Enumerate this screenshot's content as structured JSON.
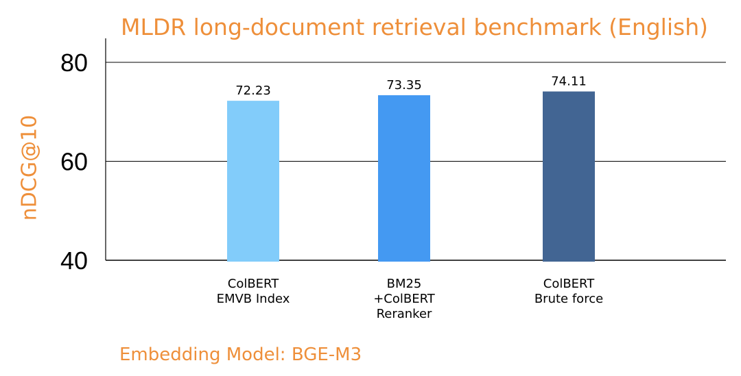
{
  "chart_data": {
    "type": "bar",
    "title": "MLDR long-document retrieval benchmark (English)",
    "ylabel": "nDCG@10",
    "xlabel": "",
    "ylim": [
      40,
      85
    ],
    "yticks": [
      "40",
      "60",
      "80"
    ],
    "grid": true,
    "categories": [
      [
        "ColBERT",
        "EMVB Index"
      ],
      [
        "BM25",
        "+ColBERT",
        "Reranker"
      ],
      [
        "ColBERT",
        "Brute force"
      ]
    ],
    "values": [
      72.23,
      73.35,
      74.11
    ],
    "value_labels": [
      "72.23",
      "73.35",
      "74.11"
    ],
    "colors": [
      "#82ccfa",
      "#4499f2",
      "#426593"
    ],
    "footnote": "Embedding Model: BGE-M3"
  }
}
